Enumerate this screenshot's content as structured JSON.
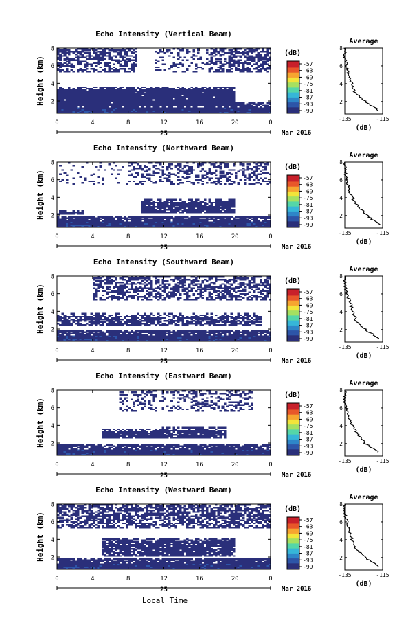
{
  "figure": {
    "xlabel": "Local Time",
    "date_label": "25",
    "month_label": "Mar 2016",
    "ylabel": "Height (km)",
    "cbar_unit": "(dB)",
    "cbar_ticks": [
      "-57",
      "-63",
      "-69",
      "-75",
      "-81",
      "-87",
      "-93",
      "-99"
    ],
    "x_ticks": [
      "0",
      "4",
      "8",
      "12",
      "16",
      "20",
      "0"
    ],
    "y_ticks": [
      "2",
      "4",
      "6",
      "8"
    ],
    "avg_title": "Average",
    "avg_xlabel": "(dB)",
    "colors": {
      "low": "#2a2f7a",
      "bg": "#ffffff",
      "line": "#000000"
    }
  },
  "chart_data": [
    {
      "type": "heatmap",
      "title": "Echo Intensity (Vertical Beam)",
      "xlabel": "Local Time",
      "ylabel": "Height (km)",
      "xlim": [
        0,
        24
      ],
      "ylim": [
        0.6,
        8
      ],
      "clim": [
        -99,
        -57
      ],
      "avg_ticks": [
        "-135",
        "-115"
      ],
      "avg_profile": {
        "height": [
          1,
          2,
          3,
          4,
          5,
          6,
          7,
          8
        ],
        "db": [
          -117,
          -124,
          -130,
          -131,
          -133,
          -134,
          -135,
          -135
        ]
      }
    },
    {
      "type": "heatmap",
      "title": "Echo Intensity (Northward Beam)",
      "xlabel": "Local Time",
      "ylabel": "Height (km)",
      "xlim": [
        0,
        24
      ],
      "ylim": [
        0.6,
        8
      ],
      "clim": [
        -99,
        -57
      ],
      "avg_ticks": [
        "-135",
        "-115"
      ],
      "avg_profile": {
        "height": [
          1,
          2,
          3,
          4,
          5,
          6,
          7,
          8
        ],
        "db": [
          -117,
          -123,
          -128,
          -131,
          -133,
          -134,
          -135,
          -135
        ]
      }
    },
    {
      "type": "heatmap",
      "title": "Echo Intensity (Southward Beam)",
      "xlabel": "Local Time",
      "ylabel": "Height (km)",
      "xlim": [
        0,
        24
      ],
      "ylim": [
        0.6,
        8
      ],
      "clim": [
        -99,
        -57
      ],
      "avg_ticks": [
        "-135",
        "-115"
      ],
      "avg_profile": {
        "height": [
          1,
          2,
          3,
          4,
          5,
          6,
          7,
          8
        ],
        "db": [
          -117,
          -124,
          -129,
          -131,
          -132,
          -134,
          -135,
          -135
        ]
      }
    },
    {
      "type": "heatmap",
      "title": "Echo Intensity (Eastward Beam)",
      "xlabel": "Local Time",
      "ylabel": "Height (km)",
      "xlim": [
        0,
        24
      ],
      "ylim": [
        0.6,
        8
      ],
      "clim": [
        -99,
        -57
      ],
      "avg_ticks": [
        "-135",
        "-115"
      ],
      "avg_profile": {
        "height": [
          1,
          2,
          3,
          4,
          5,
          6,
          7,
          8
        ],
        "db": [
          -117,
          -124,
          -128,
          -131,
          -133,
          -134,
          -135,
          -135
        ]
      }
    },
    {
      "type": "heatmap",
      "title": "Echo Intensity (Westward Beam)",
      "xlabel": "Local Time",
      "ylabel": "Height (km)",
      "xlim": [
        0,
        24
      ],
      "ylim": [
        0.6,
        8
      ],
      "clim": [
        -99,
        -57
      ],
      "avg_ticks": [
        "-135",
        "-115"
      ],
      "avg_profile": {
        "height": [
          1,
          2,
          3,
          4,
          5,
          6,
          7,
          8
        ],
        "db": [
          -117,
          -124,
          -129,
          -131,
          -133,
          -134,
          -135,
          -135
        ]
      }
    }
  ]
}
